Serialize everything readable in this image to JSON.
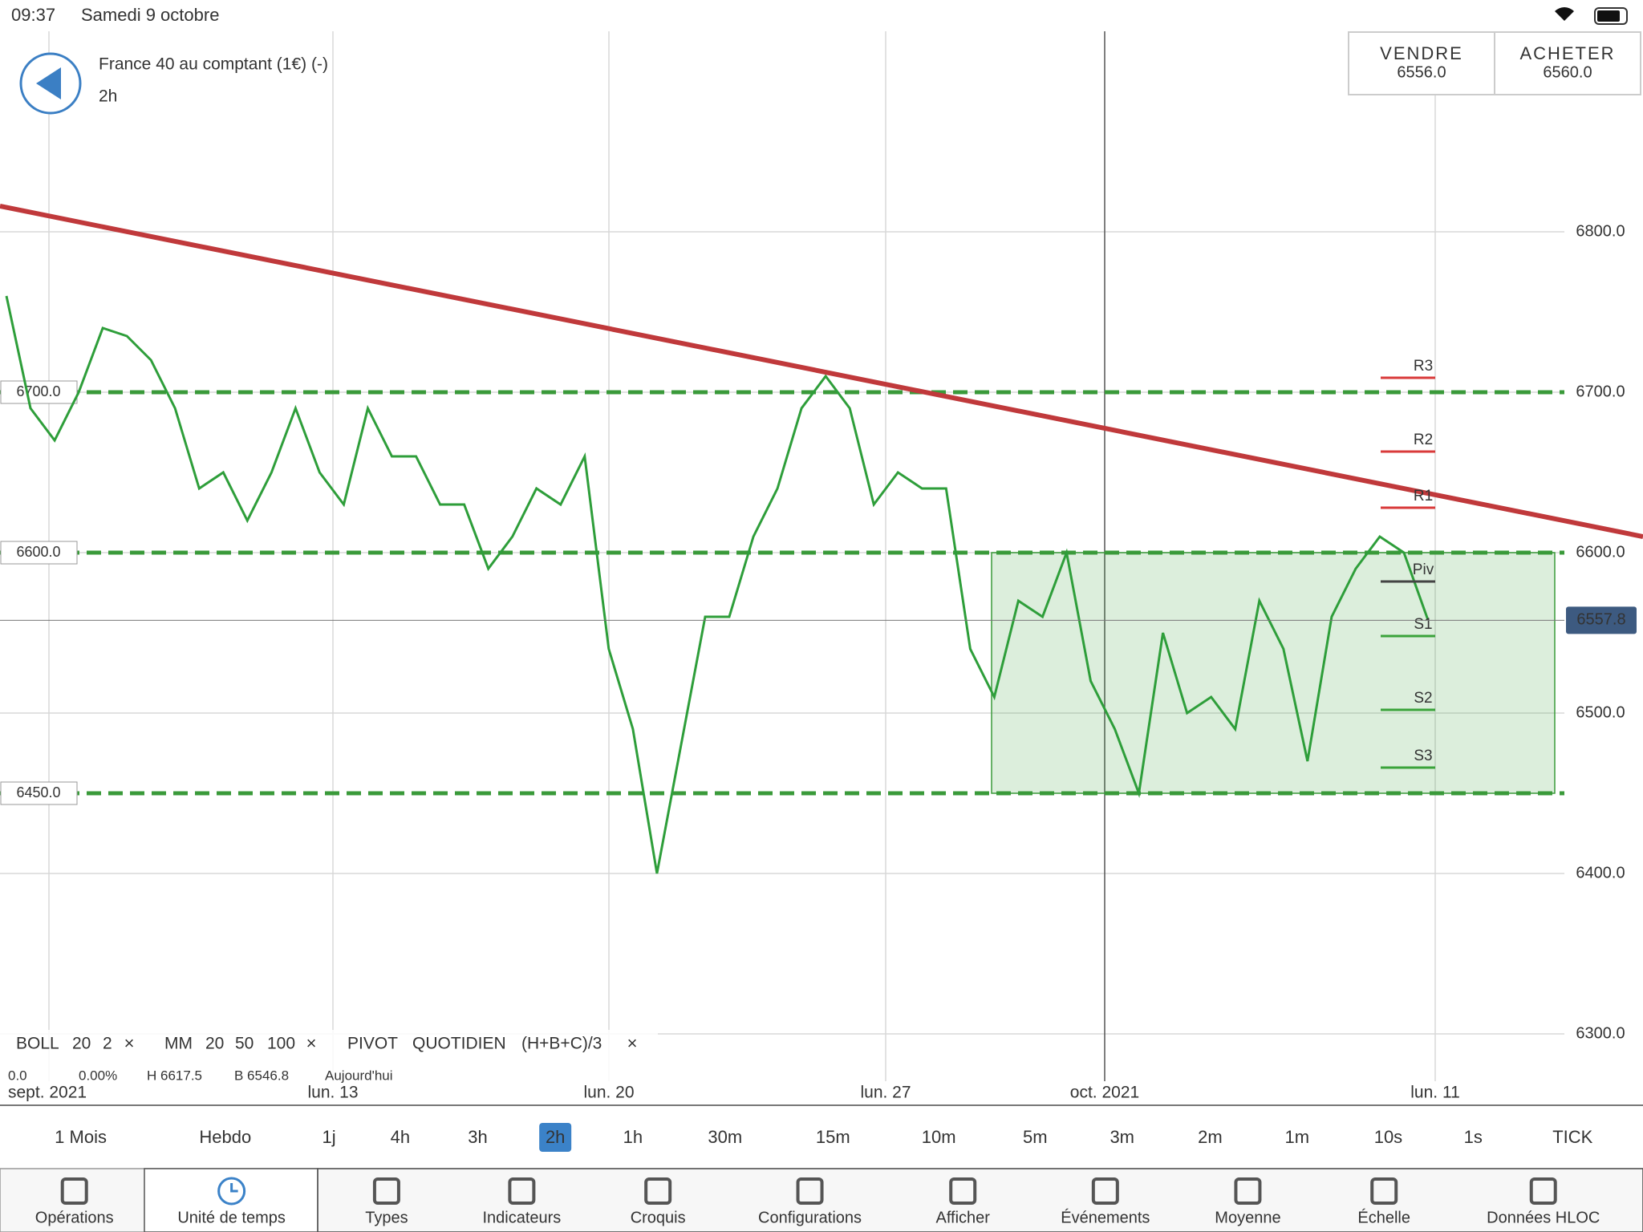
{
  "status_bar": {
    "time": "09:37",
    "date": "Samedi 9 octobre"
  },
  "header": {
    "instrument": "France 40 au comptant (1€) (-)",
    "timeframe": "2h"
  },
  "quote": {
    "sell_label": "VENDRE",
    "sell": "6556.0",
    "buy_label": "ACHETER",
    "buy": "6560.0"
  },
  "chart_data": {
    "type": "line",
    "x_labels": [
      "sept. 2021",
      "lun. 13",
      "lun. 20",
      "lun. 27",
      "oct. 2021",
      "lun. 11"
    ],
    "ylim": [
      6255.5,
      6925
    ],
    "yticks": [
      {
        "value": 6300,
        "label": "6300.0"
      },
      {
        "value": 6400,
        "label": "6400.0"
      },
      {
        "value": 6500,
        "label": "6500.0"
      },
      {
        "value": 6600,
        "label": "6600.0"
      },
      {
        "value": 6700,
        "label": "6700.0"
      },
      {
        "value": 6800,
        "label": "6800.0"
      }
    ],
    "grid": true,
    "color": "#2e9e3a",
    "values": [
      6760,
      6690,
      6670,
      6700,
      6740,
      6735,
      6720,
      6690,
      6640,
      6650,
      6620,
      6650,
      6690,
      6650,
      6630,
      6690,
      6660,
      6660,
      6630,
      6630,
      6590,
      6610,
      6640,
      6630,
      6660,
      6540,
      6490,
      6400,
      6480,
      6560,
      6560,
      6610,
      6640,
      6690,
      6710,
      6690,
      6630,
      6650,
      6640,
      6640,
      6540,
      6510,
      6570,
      6560,
      6600,
      6520,
      6490,
      6450,
      6550,
      6500,
      6510,
      6490,
      6570,
      6540,
      6470,
      6560,
      6590,
      6610,
      6600,
      6558
    ],
    "levels": [
      {
        "value": 6700,
        "label": "6700.0"
      },
      {
        "value": 6600,
        "label": "6600.0"
      },
      {
        "value": 6450,
        "label": "6450.0"
      }
    ],
    "level_color": "#3a9a3a",
    "trendline": {
      "values": [
        6816,
        6610
      ],
      "color": "#c0393b"
    },
    "pivots": {
      "labels": [
        "R3",
        "R2",
        "R1",
        "Piv",
        "S1",
        "S2",
        "S3"
      ],
      "values": [
        6709,
        6663,
        6628,
        6582,
        6548,
        6502,
        6466
      ]
    },
    "range_box": {
      "values": [
        6600,
        6450
      ]
    },
    "last_price": {
      "value": 6557.8,
      "label": "6557.8"
    }
  },
  "indicators": {
    "boll": [
      "BOLL",
      "20",
      "2"
    ],
    "mm": [
      "MM",
      "20",
      "50",
      "100"
    ],
    "pivot": [
      "PIVOT",
      "QUOTIDIEN",
      "(H+B+C)/3"
    ],
    "readout": [
      "0.0",
      "0.00%",
      "H 6617.5",
      "B 6546.8",
      "Aujourd'hui"
    ]
  },
  "timeframes": {
    "items": [
      "1 Mois",
      "Hebdo",
      "1j",
      "4h",
      "3h",
      "2h",
      "1h",
      "30m",
      "15m",
      "10m",
      "5m",
      "3m",
      "2m",
      "1m",
      "10s",
      "1s",
      "TICK"
    ],
    "selected": 5
  },
  "toolbar": {
    "items": [
      "Opérations",
      "Unité de temps",
      "Types",
      "Indicateurs",
      "Croquis",
      "Configurations",
      "Afficher",
      "Événements",
      "Moyenne",
      "Échelle",
      "Données HLOC"
    ],
    "selected": 1
  }
}
